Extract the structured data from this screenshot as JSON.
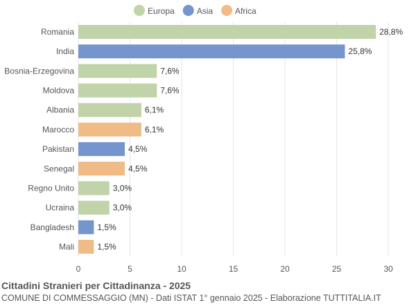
{
  "chart_data": {
    "type": "bar",
    "orientation": "horizontal",
    "title": "Cittadini Stranieri per Cittadinanza - 2025",
    "subtitle": "COMUNE DI COMMESSAGGIO (MN) - Dati ISTAT 1° gennaio 2025 - Elaborazione TUTTITALIA.IT",
    "categories": [
      "Romania",
      "India",
      "Bosnia-Erzegovina",
      "Moldova",
      "Albania",
      "Marocco",
      "Pakistan",
      "Senegal",
      "Regno Unito",
      "Ucraina",
      "Bangladesh",
      "Mali"
    ],
    "values": [
      28.8,
      25.8,
      7.6,
      7.6,
      6.1,
      6.1,
      4.5,
      4.5,
      3.0,
      3.0,
      1.5,
      1.5
    ],
    "labels": [
      "28,8%",
      "25,8%",
      "7,6%",
      "7,6%",
      "6,1%",
      "6,1%",
      "4,5%",
      "4,5%",
      "3,0%",
      "3,0%",
      "1,5%",
      "1,5%"
    ],
    "groups": [
      "Europa",
      "Asia",
      "Europa",
      "Europa",
      "Europa",
      "Africa",
      "Asia",
      "Africa",
      "Europa",
      "Europa",
      "Asia",
      "Africa"
    ],
    "legend": [
      {
        "name": "Europa",
        "color": "#c1d3a9"
      },
      {
        "name": "Asia",
        "color": "#7595cd"
      },
      {
        "name": "Africa",
        "color": "#f0bb87"
      }
    ],
    "legend_position": "top",
    "xlim": [
      0,
      30
    ],
    "xticks": [
      0,
      5,
      10,
      15,
      20,
      25,
      30
    ],
    "grid": true
  }
}
